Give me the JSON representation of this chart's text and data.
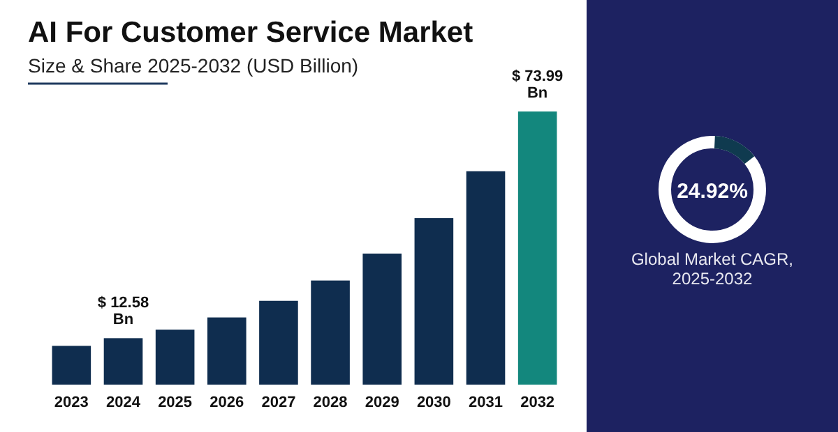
{
  "chart_data": [
    {
      "type": "bar",
      "title": "AI For Customer Service Market",
      "subtitle": "Size & Share 2025-2032 (USD Billion)",
      "categories": [
        "2023",
        "2024",
        "2025",
        "2026",
        "2027",
        "2028",
        "2029",
        "2030",
        "2031",
        "2032"
      ],
      "values": [
        10.5,
        12.58,
        14.9,
        18.2,
        22.7,
        28.2,
        35.5,
        45.1,
        57.8,
        73.99
      ],
      "colors": [
        "#0f2d4f",
        "#0f2d4f",
        "#0f2d4f",
        "#0f2d4f",
        "#0f2d4f",
        "#0f2d4f",
        "#0f2d4f",
        "#0f2d4f",
        "#0f2d4f",
        "#13877d"
      ],
      "value_labels": [
        null,
        "$ 12.58 Bn",
        null,
        null,
        null,
        null,
        null,
        null,
        null,
        "$ 73.99 Bn"
      ]
    },
    {
      "type": "other",
      "title": "24.92%",
      "annotations": [
        "Global Market CAGR, 2025-2032"
      ]
    }
  ]
}
